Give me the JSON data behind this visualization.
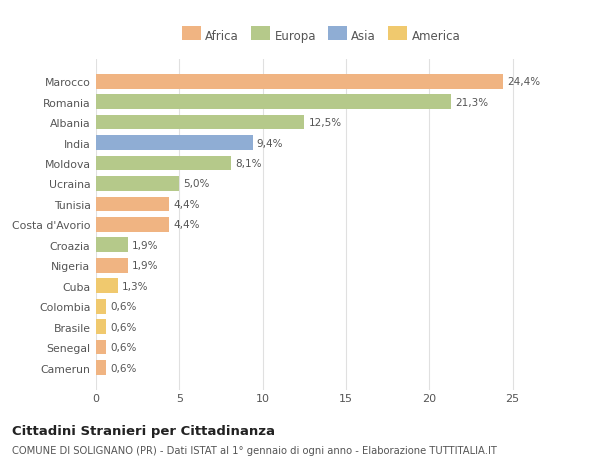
{
  "countries": [
    "Camerun",
    "Senegal",
    "Brasile",
    "Colombia",
    "Cuba",
    "Nigeria",
    "Croazia",
    "Costa d'Avorio",
    "Tunisia",
    "Ucraina",
    "Moldova",
    "India",
    "Albania",
    "Romania",
    "Marocco"
  ],
  "values": [
    0.6,
    0.6,
    0.6,
    0.6,
    1.3,
    1.9,
    1.9,
    4.4,
    4.4,
    5.0,
    8.1,
    9.4,
    12.5,
    21.3,
    24.4
  ],
  "labels": [
    "0,6%",
    "0,6%",
    "0,6%",
    "0,6%",
    "1,3%",
    "1,9%",
    "1,9%",
    "4,4%",
    "4,4%",
    "5,0%",
    "8,1%",
    "9,4%",
    "12,5%",
    "21,3%",
    "24,4%"
  ],
  "colors": [
    "#f0b482",
    "#f0b482",
    "#f0c96e",
    "#f0c96e",
    "#f0c96e",
    "#f0b482",
    "#b5c98a",
    "#f0b482",
    "#f0b482",
    "#b5c98a",
    "#b5c98a",
    "#8fadd4",
    "#b5c98a",
    "#b5c98a",
    "#f0b482"
  ],
  "legend": {
    "Africa": "#f0b482",
    "Europa": "#b5c98a",
    "Asia": "#8fadd4",
    "America": "#f0c96e"
  },
  "title": "Cittadini Stranieri per Cittadinanza",
  "subtitle": "COMUNE DI SOLIGNANO (PR) - Dati ISTAT al 1° gennaio di ogni anno - Elaborazione TUTTITALIA.IT",
  "xlim": [
    0,
    27
  ],
  "background_color": "#ffffff",
  "bar_height": 0.72
}
